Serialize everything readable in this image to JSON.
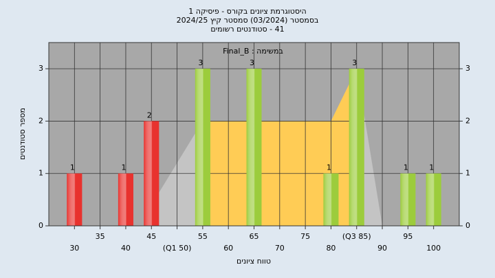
{
  "chart_data": {
    "type": "bar",
    "title": [
      "היסטוגרמת ציונים בקורס - פיסיקה 1",
      "בסמסטר (03/2024) סמסטר קיץ 2024/25",
      "41 - סטודנטים רשומים"
    ],
    "subtitle": "במשימה : Final_B",
    "xlabel": "טווח ציונים",
    "ylabel": "מספר סטודנטים",
    "x": [
      30,
      40,
      45,
      55,
      65,
      80,
      85,
      95,
      100
    ],
    "values": [
      1,
      1,
      2,
      3,
      3,
      1,
      3,
      1,
      1
    ],
    "colors": [
      "#e8322e",
      "#e8322e",
      "#e8322e",
      "#9ccc3c",
      "#9ccc3c",
      "#9ccc3c",
      "#9ccc3c",
      "#9ccc3c",
      "#9ccc3c"
    ],
    "areas": [
      {
        "color": "#c4c4c4",
        "x": [
          45,
          55
        ],
        "values": [
          0.4,
          2
        ]
      },
      {
        "color": "#ffcc55",
        "x": [
          55,
          80,
          85
        ],
        "values": [
          2,
          2,
          3
        ]
      },
      {
        "color": "#c4c4c4",
        "x": [
          85,
          90
        ],
        "values": [
          3,
          0
        ]
      }
    ],
    "xlim": [
      25,
      105
    ],
    "ylim": [
      0,
      3.5
    ],
    "yticks": [
      0,
      1,
      2,
      3
    ],
    "xticks": [
      30,
      35,
      40,
      45,
      {
        "value": 50,
        "label": "(Q1 50)"
      },
      55,
      60,
      65,
      70,
      75,
      80,
      {
        "value": 85,
        "label": "(Q3 85)"
      },
      90,
      95,
      100
    ],
    "grid": true,
    "plot_background": "#a8a8a8"
  }
}
